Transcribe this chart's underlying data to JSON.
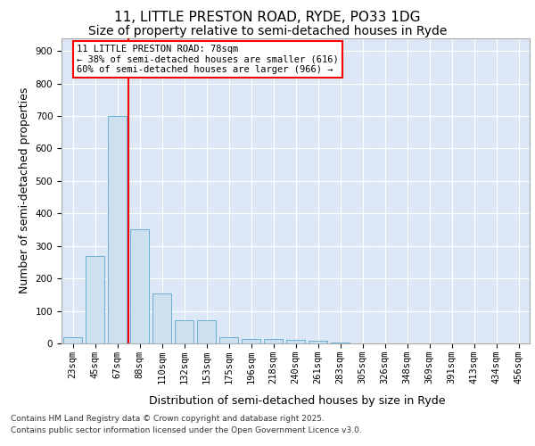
{
  "title1": "11, LITTLE PRESTON ROAD, RYDE, PO33 1DG",
  "title2": "Size of property relative to semi-detached houses in Ryde",
  "xlabel": "Distribution of semi-detached houses by size in Ryde",
  "ylabel": "Number of semi-detached properties",
  "bins": [
    "23sqm",
    "45sqm",
    "67sqm",
    "88sqm",
    "110sqm",
    "132sqm",
    "153sqm",
    "175sqm",
    "196sqm",
    "218sqm",
    "240sqm",
    "261sqm",
    "283sqm",
    "305sqm",
    "326sqm",
    "348sqm",
    "369sqm",
    "391sqm",
    "413sqm",
    "434sqm",
    "456sqm"
  ],
  "values": [
    20,
    270,
    700,
    350,
    155,
    70,
    70,
    20,
    15,
    13,
    10,
    8,
    4,
    0,
    0,
    0,
    0,
    0,
    0,
    0,
    0
  ],
  "bar_color": "#cce0f0",
  "bar_edge_color": "#6baed6",
  "annotation_text": "11 LITTLE PRESTON ROAD: 78sqm\n← 38% of semi-detached houses are smaller (616)\n60% of semi-detached houses are larger (966) →",
  "annotation_box_color": "white",
  "annotation_box_edge": "red",
  "vline_color": "red",
  "vline_x": 2.5,
  "ylim": [
    0,
    940
  ],
  "yticks": [
    0,
    100,
    200,
    300,
    400,
    500,
    600,
    700,
    800,
    900
  ],
  "background_color": "#dce8f5",
  "footer1": "Contains HM Land Registry data © Crown copyright and database right 2025.",
  "footer2": "Contains public sector information licensed under the Open Government Licence v3.0.",
  "title_fontsize": 11,
  "subtitle_fontsize": 10,
  "axis_label_fontsize": 9,
  "tick_fontsize": 7.5,
  "annotation_fontsize": 7.5,
  "footer_fontsize": 6.5
}
